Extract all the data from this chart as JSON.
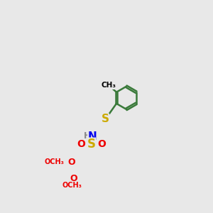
{
  "background_color": "#e8e8e8",
  "bond_color": "#3a7a3a",
  "bond_lw": 1.8,
  "atom_colors": {
    "S": "#ccaa00",
    "N": "#0000ee",
    "O": "#ee0000",
    "H": "#888888",
    "C": "#000000"
  },
  "figsize": [
    3.0,
    3.0
  ],
  "dpi": 100,
  "xlim": [
    0,
    1
  ],
  "ylim": [
    0,
    1
  ]
}
